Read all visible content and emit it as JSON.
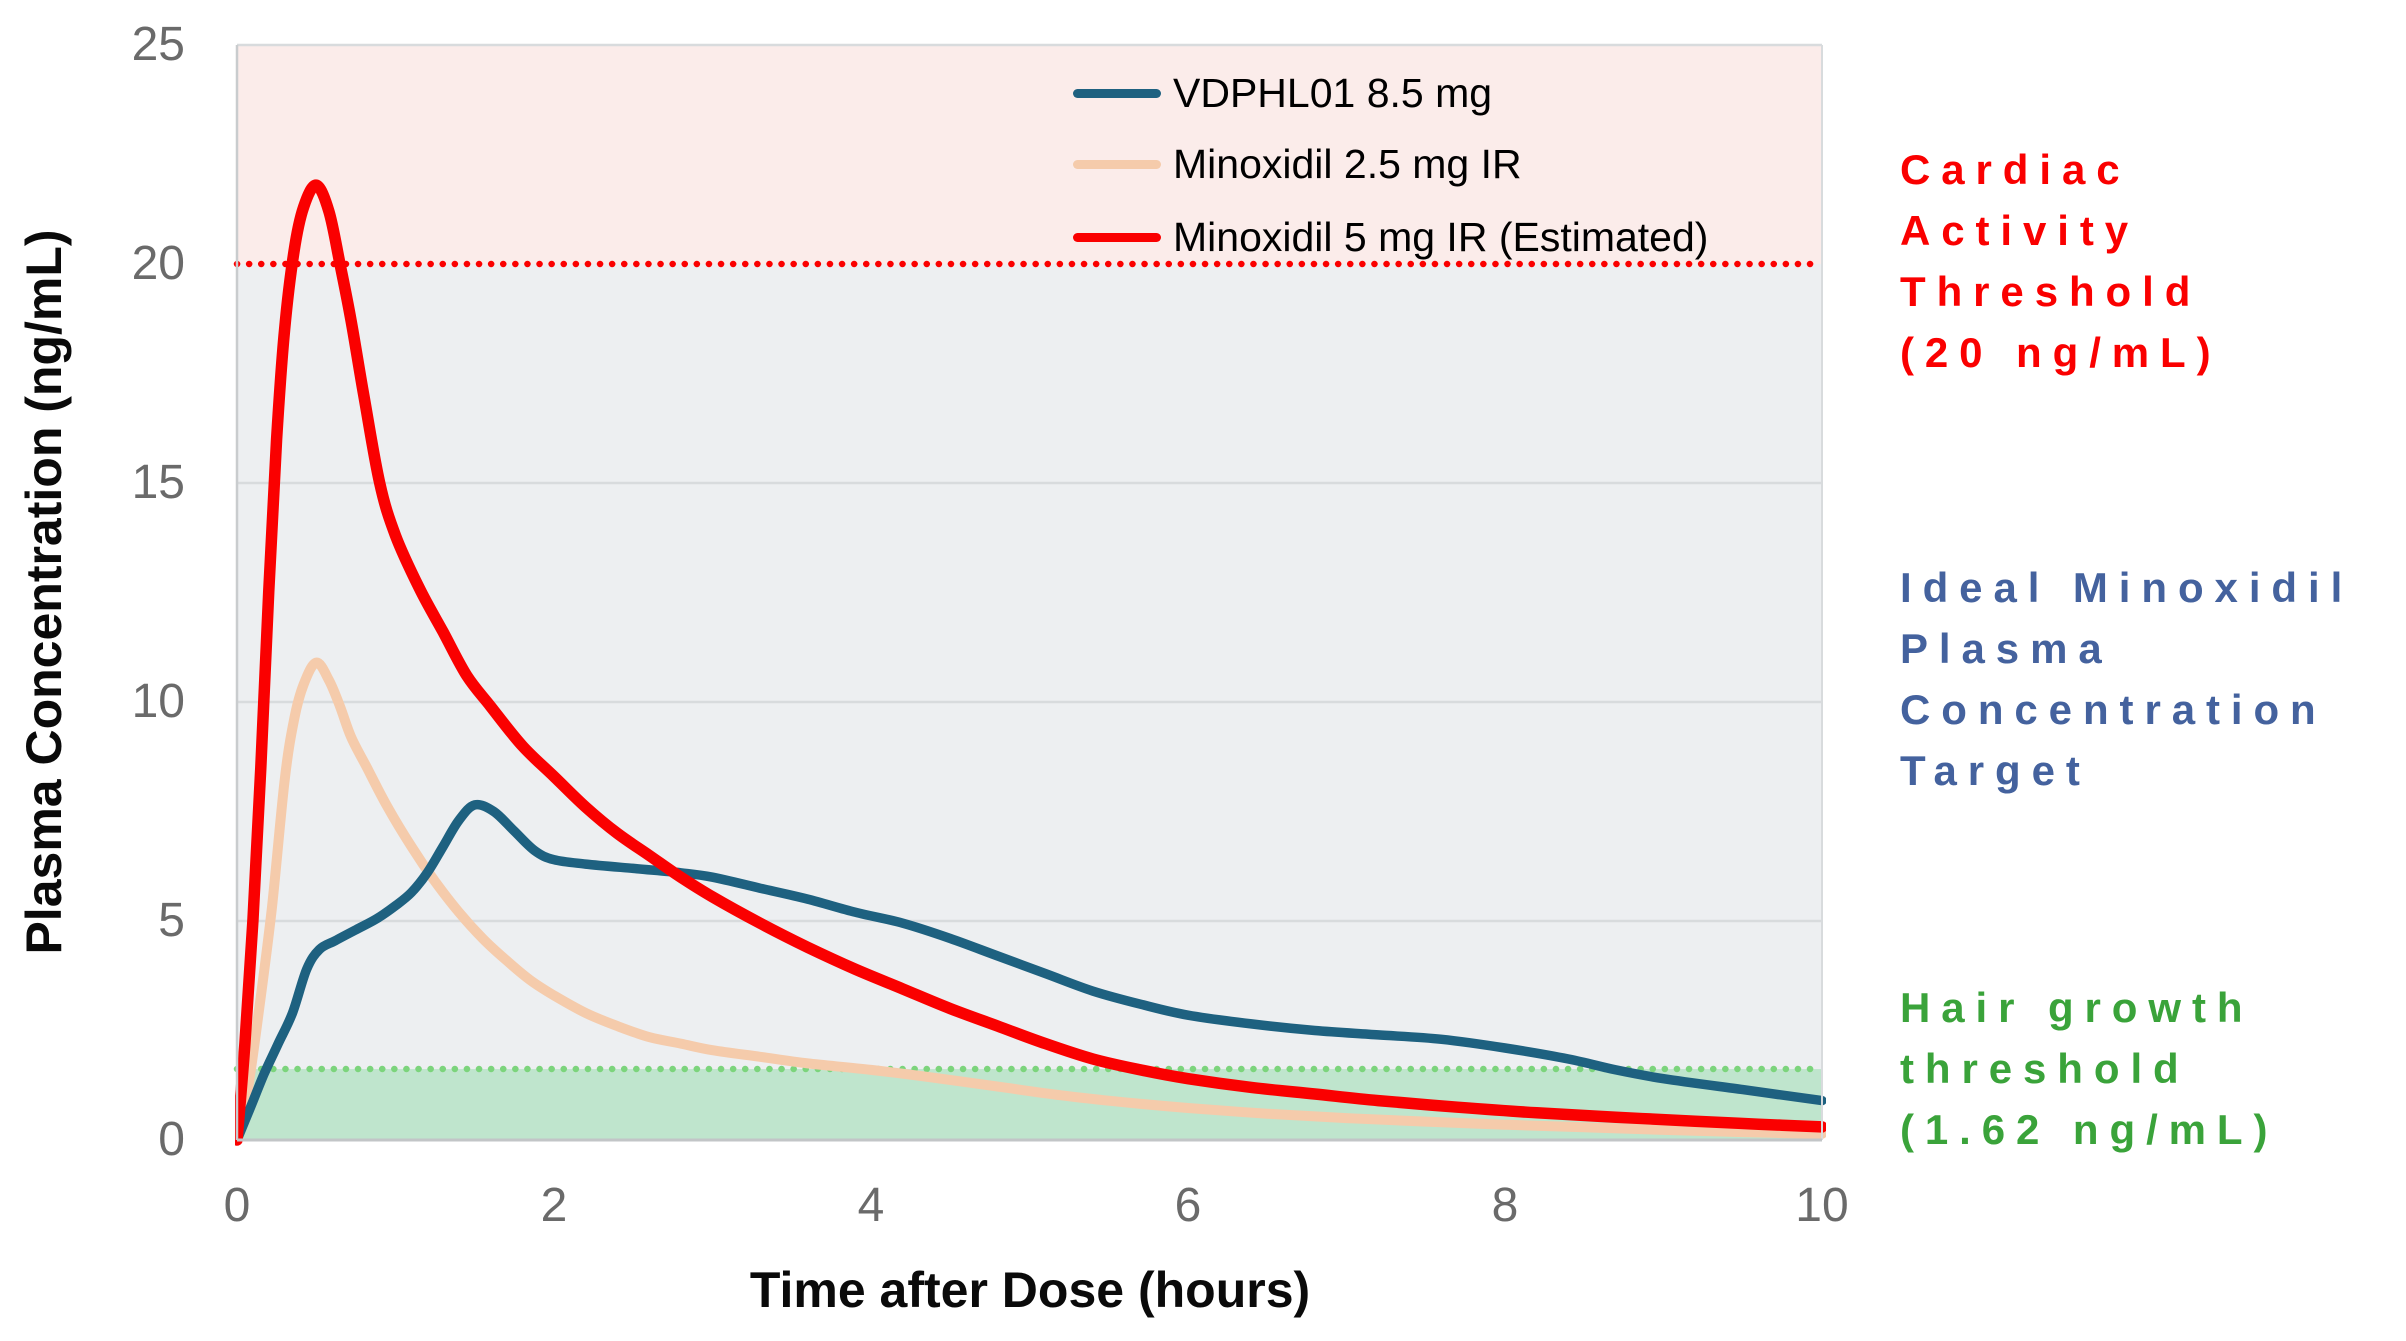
{
  "chart_data": {
    "type": "line",
    "xlabel": "Time after Dose (hours)",
    "ylabel": "Plasma Concentration (ng/mL)",
    "xlim": [
      0,
      10
    ],
    "ylim": [
      0,
      25
    ],
    "x_ticks": [
      0,
      2,
      4,
      6,
      8,
      10
    ],
    "y_ticks": [
      0,
      5,
      10,
      15,
      20,
      25
    ],
    "grid": "horizontal-only",
    "legend_position": "top-center-inside",
    "series": [
      {
        "name": "VDPHL01 8.5 mg",
        "color": "#1E6180",
        "stroke_width": 9.5,
        "points": [
          [
            0,
            0
          ],
          [
            0.08,
            0.7
          ],
          [
            0.17,
            1.5
          ],
          [
            0.26,
            2.2
          ],
          [
            0.35,
            2.9
          ],
          [
            0.44,
            3.9
          ],
          [
            0.52,
            4.35
          ],
          [
            0.62,
            4.55
          ],
          [
            0.75,
            4.8
          ],
          [
            0.88,
            5.05
          ],
          [
            1.0,
            5.35
          ],
          [
            1.1,
            5.65
          ],
          [
            1.2,
            6.1
          ],
          [
            1.3,
            6.7
          ],
          [
            1.4,
            7.3
          ],
          [
            1.5,
            7.65
          ],
          [
            1.62,
            7.5
          ],
          [
            1.75,
            7.05
          ],
          [
            1.88,
            6.6
          ],
          [
            2.0,
            6.4
          ],
          [
            2.2,
            6.3
          ],
          [
            2.5,
            6.2
          ],
          [
            2.8,
            6.1
          ],
          [
            3.0,
            6.0
          ],
          [
            3.3,
            5.75
          ],
          [
            3.6,
            5.5
          ],
          [
            3.9,
            5.2
          ],
          [
            4.2,
            4.95
          ],
          [
            4.5,
            4.6
          ],
          [
            4.8,
            4.2
          ],
          [
            5.1,
            3.8
          ],
          [
            5.4,
            3.4
          ],
          [
            5.7,
            3.1
          ],
          [
            6.0,
            2.85
          ],
          [
            6.4,
            2.65
          ],
          [
            6.8,
            2.5
          ],
          [
            7.2,
            2.4
          ],
          [
            7.6,
            2.3
          ],
          [
            8.0,
            2.1
          ],
          [
            8.4,
            1.85
          ],
          [
            8.7,
            1.6
          ],
          [
            9.0,
            1.4
          ],
          [
            9.5,
            1.15
          ],
          [
            10,
            0.9
          ]
        ]
      },
      {
        "name": "Minoxidil 2.5 mg IR",
        "color": "#F5CBAB",
        "stroke_width": 10,
        "points": [
          [
            0,
            0
          ],
          [
            0.07,
            1.2
          ],
          [
            0.14,
            3.0
          ],
          [
            0.22,
            5.3
          ],
          [
            0.3,
            8.2
          ],
          [
            0.36,
            9.6
          ],
          [
            0.42,
            10.4
          ],
          [
            0.5,
            10.9
          ],
          [
            0.58,
            10.5
          ],
          [
            0.65,
            9.9
          ],
          [
            0.72,
            9.2
          ],
          [
            0.82,
            8.5
          ],
          [
            0.95,
            7.6
          ],
          [
            1.1,
            6.7
          ],
          [
            1.25,
            5.9
          ],
          [
            1.4,
            5.2
          ],
          [
            1.55,
            4.6
          ],
          [
            1.7,
            4.1
          ],
          [
            1.85,
            3.65
          ],
          [
            2.0,
            3.3
          ],
          [
            2.2,
            2.9
          ],
          [
            2.4,
            2.6
          ],
          [
            2.6,
            2.35
          ],
          [
            2.8,
            2.2
          ],
          [
            3.0,
            2.05
          ],
          [
            3.3,
            1.9
          ],
          [
            3.6,
            1.75
          ],
          [
            4.0,
            1.6
          ],
          [
            4.4,
            1.42
          ],
          [
            4.8,
            1.22
          ],
          [
            5.2,
            1.02
          ],
          [
            5.6,
            0.86
          ],
          [
            6.0,
            0.73
          ],
          [
            6.5,
            0.6
          ],
          [
            7.0,
            0.5
          ],
          [
            7.5,
            0.42
          ],
          [
            8.0,
            0.35
          ],
          [
            8.5,
            0.29
          ],
          [
            9.0,
            0.23
          ],
          [
            9.5,
            0.18
          ],
          [
            10,
            0.14
          ]
        ]
      },
      {
        "name": "Minoxidil 5 mg IR (Estimated)",
        "color": "#FA0000",
        "stroke_width": 11.5,
        "points": [
          [
            0,
            0
          ],
          [
            0.05,
            2.2
          ],
          [
            0.1,
            5.0
          ],
          [
            0.15,
            8.5
          ],
          [
            0.2,
            12.5
          ],
          [
            0.25,
            16.0
          ],
          [
            0.3,
            18.5
          ],
          [
            0.36,
            20.3
          ],
          [
            0.42,
            21.3
          ],
          [
            0.5,
            21.8
          ],
          [
            0.58,
            21.2
          ],
          [
            0.65,
            20.0
          ],
          [
            0.72,
            18.7
          ],
          [
            0.8,
            17.0
          ],
          [
            0.9,
            15.0
          ],
          [
            1.0,
            13.8
          ],
          [
            1.15,
            12.6
          ],
          [
            1.3,
            11.6
          ],
          [
            1.45,
            10.6
          ],
          [
            1.6,
            9.9
          ],
          [
            1.8,
            9.0
          ],
          [
            2.0,
            8.3
          ],
          [
            2.2,
            7.6
          ],
          [
            2.4,
            7.0
          ],
          [
            2.6,
            6.5
          ],
          [
            2.8,
            6.0
          ],
          [
            3.0,
            5.55
          ],
          [
            3.3,
            4.95
          ],
          [
            3.6,
            4.4
          ],
          [
            3.9,
            3.9
          ],
          [
            4.2,
            3.45
          ],
          [
            4.5,
            3.0
          ],
          [
            4.8,
            2.6
          ],
          [
            5.1,
            2.2
          ],
          [
            5.4,
            1.85
          ],
          [
            5.7,
            1.6
          ],
          [
            6.0,
            1.4
          ],
          [
            6.4,
            1.2
          ],
          [
            6.8,
            1.05
          ],
          [
            7.2,
            0.9
          ],
          [
            7.7,
            0.75
          ],
          [
            8.2,
            0.62
          ],
          [
            8.7,
            0.52
          ],
          [
            9.2,
            0.43
          ],
          [
            9.6,
            0.36
          ],
          [
            10,
            0.3
          ]
        ]
      }
    ],
    "thresholds": [
      {
        "value": 20,
        "color": "#FA0000",
        "style": "dotted"
      },
      {
        "value": 1.62,
        "color": "#7CD47C",
        "style": "dotted"
      }
    ],
    "regions": [
      {
        "from": 20,
        "to": 25,
        "color": "#FBECEA"
      },
      {
        "from": 1.62,
        "to": 20,
        "color": "#EDEFF1"
      },
      {
        "from": 0,
        "to": 1.62,
        "color": "#BFE5CD"
      }
    ]
  },
  "annotations": {
    "cardiac": {
      "color": "#FA0000",
      "lines": [
        "Cardiac",
        "Activity",
        "Threshold",
        "(20 ng/mL)"
      ]
    },
    "target": {
      "color": "#44629E",
      "lines": [
        "Ideal Minoxidil",
        "Plasma",
        "Concentration",
        "Target"
      ]
    },
    "hair": {
      "color": "#3AA33A",
      "lines": [
        "Hair growth",
        "threshold",
        "(1.62 ng/mL)"
      ]
    }
  }
}
